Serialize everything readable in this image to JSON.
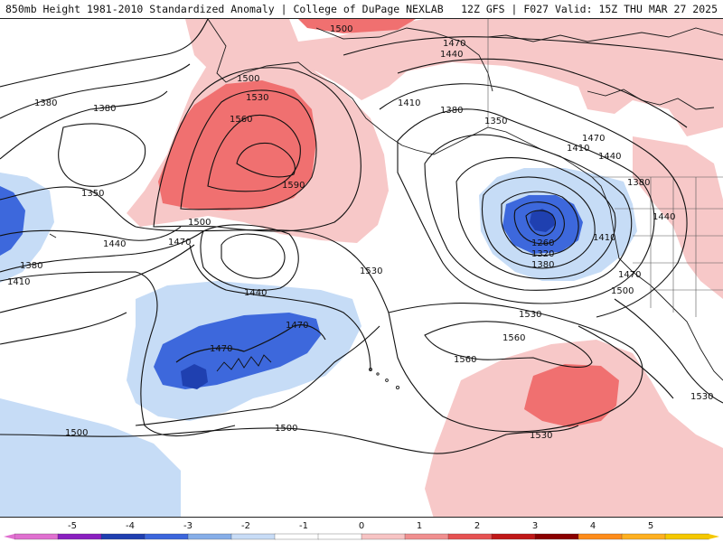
{
  "header": {
    "title_left": "850mb Height 1981-2010 Standardized Anomaly | College of DuPage NEXLAB",
    "title_right": "12Z GFS | F027 Valid: 15Z THU MAR 27 2025"
  },
  "contour_labels": {
    "l1500_top": "1500",
    "l1470_ne": "1470",
    "l1440_ne": "1440",
    "l1380_w1": "1380",
    "l1380_w2": "1380",
    "l1500_ridge": "1500",
    "l1530_ridge": "1530",
    "l1560_ridge": "1560",
    "l1590_ridge": "1590",
    "l1410_ak": "1410",
    "l1380_ak": "1380",
    "l1350_ak": "1350",
    "l1350_w": "1350",
    "l1440_w": "1440",
    "l1470_w": "1470",
    "l1500_w": "1500",
    "l1380_sw": "1380",
    "l1410_sw": "1410",
    "l1410_bc": "1410",
    "l1440_bc": "1440",
    "l1470_bc": "1470",
    "l1380_bc": "1380",
    "l1440_e": "1440",
    "l1410_low": "1410",
    "l1260": "1260",
    "l1320": "1320",
    "l1380_low": "1380",
    "l1470_ca": "1470",
    "l1500_ca": "1500",
    "l1530_mid": "1530",
    "l1440_center": "1440",
    "l1530_center": "1530",
    "l1470_trough1": "1470",
    "l1470_trough2": "1470",
    "l1560_hi": "1560",
    "l1560_hi2": "1560",
    "l1530_s": "1530",
    "l1500_sw": "1500",
    "l1500_s": "1500",
    "l1530_se": "1530"
  },
  "colorbar": {
    "ticks": [
      "-5",
      "-4",
      "-3",
      "-2",
      "-1",
      "0",
      "1",
      "2",
      "3",
      "4",
      "5"
    ],
    "colors": [
      "#e070d0",
      "#8a1fc0",
      "#1f3fb0",
      "#3c66dc",
      "#86aee8",
      "#c8dcf6",
      "#ffffff",
      "#ffffff",
      "#f7c4c4",
      "#f08f8f",
      "#e65252",
      "#c01818",
      "#8a0000",
      "#ff8c1a",
      "#ffb020",
      "#f5c800"
    ]
  }
}
